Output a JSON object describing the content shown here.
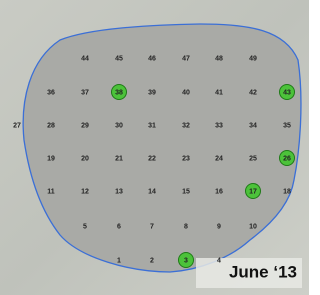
{
  "rows": [
    [
      {
        "label": "44"
      },
      {
        "label": "45"
      },
      {
        "label": "46"
      },
      {
        "label": "47"
      },
      {
        "label": "48"
      },
      {
        "label": "49"
      }
    ],
    [
      {
        "label": "36"
      },
      {
        "label": "37"
      },
      {
        "label": "38",
        "highlighted": true
      },
      {
        "label": "39"
      },
      {
        "label": "40"
      },
      {
        "label": "41"
      },
      {
        "label": "42"
      },
      {
        "label": "43",
        "highlighted": true
      }
    ],
    [
      {
        "label": "27"
      },
      {
        "label": "28"
      },
      {
        "label": "29"
      },
      {
        "label": "30"
      },
      {
        "label": "31"
      },
      {
        "label": "32"
      },
      {
        "label": "33"
      },
      {
        "label": "34"
      },
      {
        "label": "35"
      }
    ],
    [
      {
        "label": "19"
      },
      {
        "label": "20"
      },
      {
        "label": "21"
      },
      {
        "label": "22"
      },
      {
        "label": "23"
      },
      {
        "label": "24"
      },
      {
        "label": "25"
      },
      {
        "label": "26",
        "highlighted": true
      }
    ],
    [
      {
        "label": "11"
      },
      {
        "label": "12"
      },
      {
        "label": "13"
      },
      {
        "label": "14"
      },
      {
        "label": "15"
      },
      {
        "label": "16"
      },
      {
        "label": "17",
        "highlighted": true
      },
      {
        "label": "18"
      }
    ],
    [
      {
        "label": "5"
      },
      {
        "label": "6"
      },
      {
        "label": "7"
      },
      {
        "label": "8"
      },
      {
        "label": "9"
      },
      {
        "label": "10"
      }
    ],
    [
      {
        "label": "1"
      },
      {
        "label": "2"
      },
      {
        "label": "3",
        "highlighted": true
      },
      {
        "label": "4"
      }
    ]
  ],
  "date_label": "June ‘13"
}
